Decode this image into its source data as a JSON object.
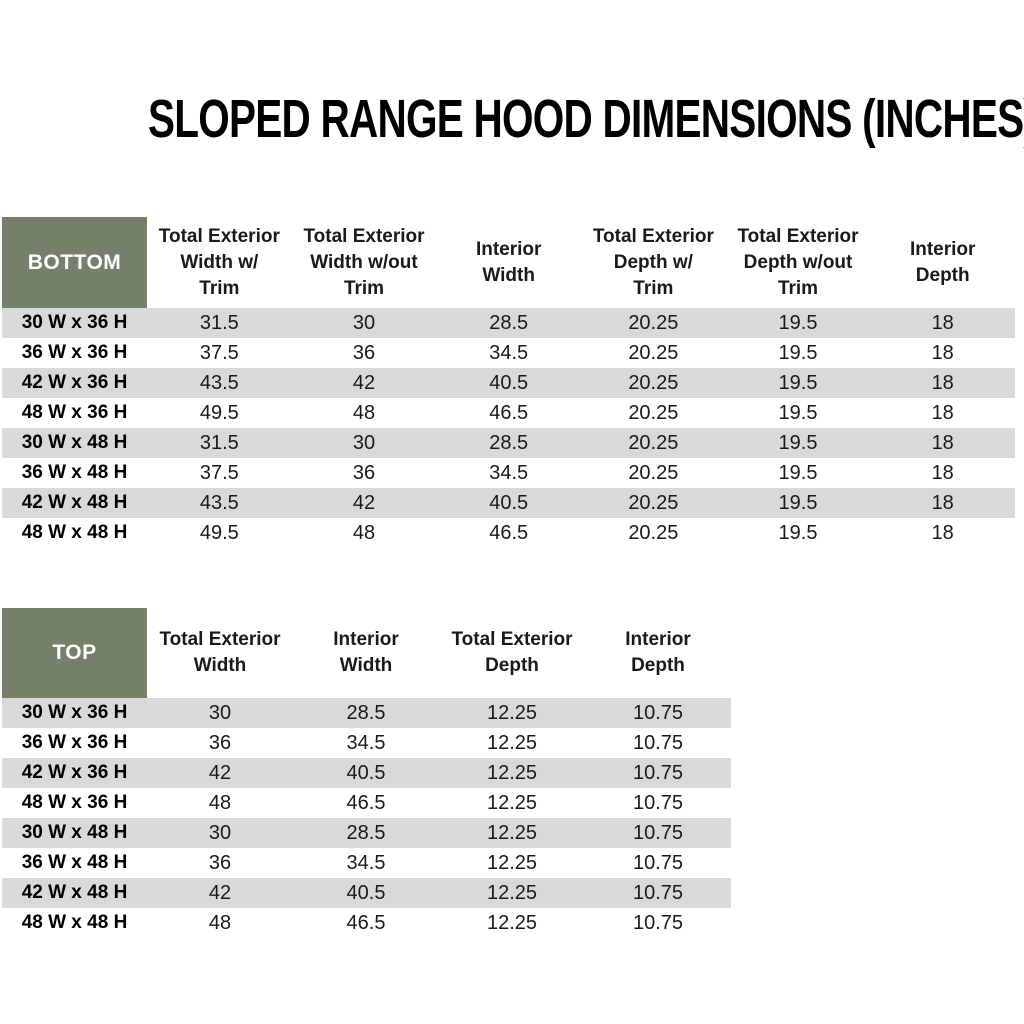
{
  "page_title": "SLOPED RANGE HOOD DIMENSIONS (INCHES)",
  "colors": {
    "header_green": "#75806A",
    "header_text": "#FFFFFF",
    "row_gray": "#D9D9D9",
    "row_white": "#FFFFFF",
    "text": "#1A1A1A"
  },
  "bottom_table": {
    "label": "BOTTOM",
    "columns": [
      "Total Exterior\nWidth w/\nTrim",
      "Total Exterior\nWidth w/out\nTrim",
      "Interior\nWidth",
      "Total Exterior\nDepth w/\nTrim",
      "Total Exterior\nDepth w/out\nTrim",
      "Interior\nDepth"
    ],
    "rows": [
      {
        "label": "30 W x 36 H",
        "values": [
          "31.5",
          "30",
          "28.5",
          "20.25",
          "19.5",
          "18"
        ]
      },
      {
        "label": "36 W x 36 H",
        "values": [
          "37.5",
          "36",
          "34.5",
          "20.25",
          "19.5",
          "18"
        ]
      },
      {
        "label": "42 W x 36 H",
        "values": [
          "43.5",
          "42",
          "40.5",
          "20.25",
          "19.5",
          "18"
        ]
      },
      {
        "label": "48 W x 36 H",
        "values": [
          "49.5",
          "48",
          "46.5",
          "20.25",
          "19.5",
          "18"
        ]
      },
      {
        "label": "30 W x 48 H",
        "values": [
          "31.5",
          "30",
          "28.5",
          "20.25",
          "19.5",
          "18"
        ]
      },
      {
        "label": "36 W x 48 H",
        "values": [
          "37.5",
          "36",
          "34.5",
          "20.25",
          "19.5",
          "18"
        ]
      },
      {
        "label": "42 W x 48 H",
        "values": [
          "43.5",
          "42",
          "40.5",
          "20.25",
          "19.5",
          "18"
        ]
      },
      {
        "label": "48 W x 48 H",
        "values": [
          "49.5",
          "48",
          "46.5",
          "20.25",
          "19.5",
          "18"
        ]
      }
    ]
  },
  "top_table": {
    "label": "TOP",
    "columns": [
      "Total Exterior\nWidth",
      "Interior\nWidth",
      "Total Exterior\nDepth",
      "Interior\nDepth"
    ],
    "rows": [
      {
        "label": "30 W x 36 H",
        "values": [
          "30",
          "28.5",
          "12.25",
          "10.75"
        ]
      },
      {
        "label": "36 W x 36 H",
        "values": [
          "36",
          "34.5",
          "12.25",
          "10.75"
        ]
      },
      {
        "label": "42 W x 36 H",
        "values": [
          "42",
          "40.5",
          "12.25",
          "10.75"
        ]
      },
      {
        "label": "48 W x 36 H",
        "values": [
          "48",
          "46.5",
          "12.25",
          "10.75"
        ]
      },
      {
        "label": "30 W x 48 H",
        "values": [
          "30",
          "28.5",
          "12.25",
          "10.75"
        ]
      },
      {
        "label": "36 W x 48 H",
        "values": [
          "36",
          "34.5",
          "12.25",
          "10.75"
        ]
      },
      {
        "label": "42 W x 48 H",
        "values": [
          "42",
          "40.5",
          "12.25",
          "10.75"
        ]
      },
      {
        "label": "48 W x 48 H",
        "values": [
          "48",
          "46.5",
          "12.25",
          "10.75"
        ]
      }
    ]
  }
}
